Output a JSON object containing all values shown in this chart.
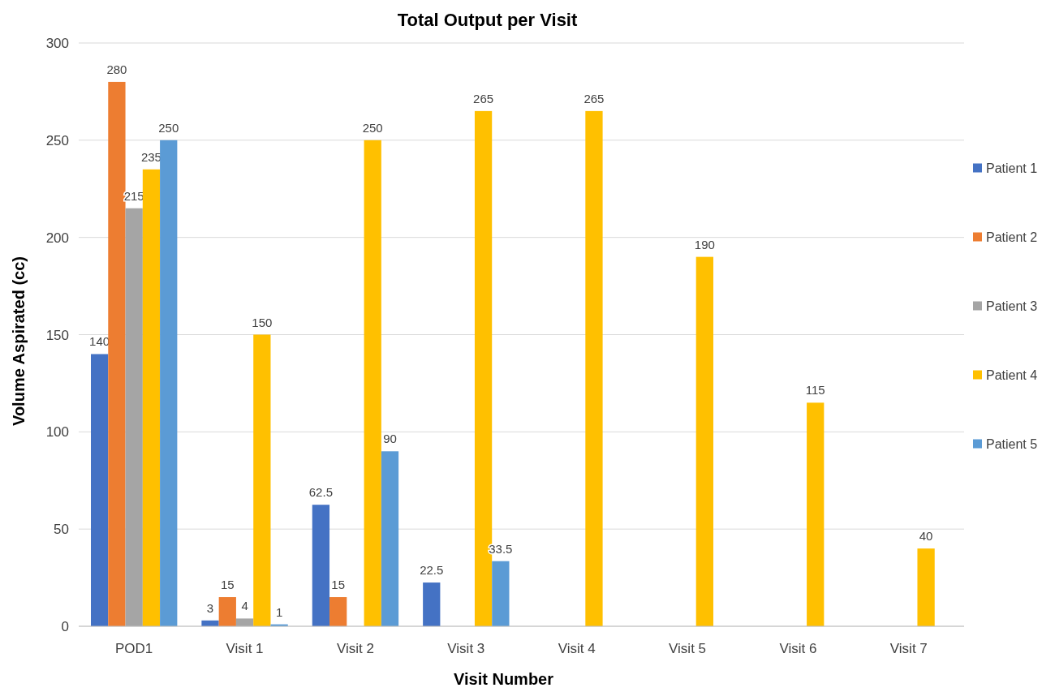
{
  "chart_data": {
    "type": "bar",
    "title": "Total Output per Visit",
    "xlabel": "Visit Number",
    "ylabel": "Volume Aspirated (cc)",
    "categories": [
      "POD1",
      "Visit 1",
      "Visit 2",
      "Visit 3",
      "Visit 4",
      "Visit 5",
      "Visit 6",
      "Visit 7"
    ],
    "series": [
      {
        "name": "Patient 1",
        "color": "#4472c4",
        "values": [
          140,
          3,
          62.5,
          22.5,
          null,
          null,
          null,
          null
        ]
      },
      {
        "name": "Patient 2",
        "color": "#ed7d31",
        "values": [
          280,
          15,
          15,
          null,
          null,
          null,
          null,
          null
        ]
      },
      {
        "name": "Patient 3",
        "color": "#a5a5a5",
        "values": [
          215,
          4,
          null,
          null,
          null,
          null,
          null,
          null
        ]
      },
      {
        "name": "Patient 4",
        "color": "#ffc000",
        "values": [
          235,
          150,
          250,
          265,
          265,
          190,
          115,
          40
        ]
      },
      {
        "name": "Patient 5",
        "color": "#5b9bd5",
        "values": [
          250,
          1,
          90,
          33.5,
          null,
          null,
          null,
          null
        ]
      }
    ],
    "ylim": [
      0,
      300
    ],
    "yticks": [
      0,
      50,
      100,
      150,
      200,
      250,
      300
    ],
    "grid": "y",
    "legend": "right",
    "data_labels": true
  }
}
